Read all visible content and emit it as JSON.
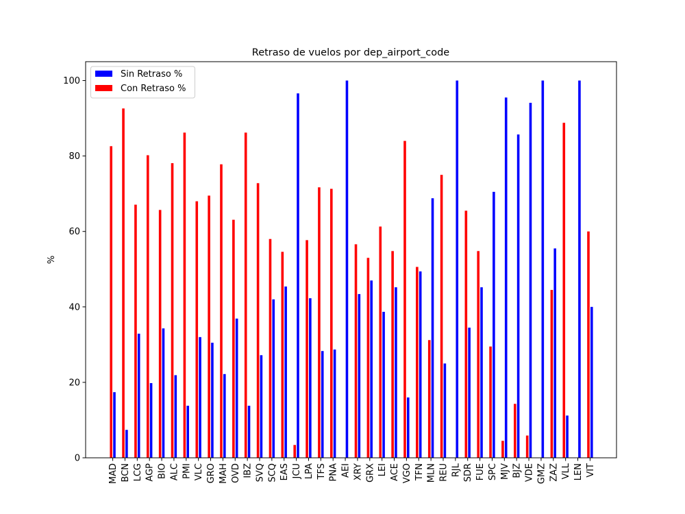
{
  "chart_data": {
    "type": "bar",
    "title": "Retraso de vuelos por dep_airport_code",
    "xlabel": "",
    "ylabel": "%",
    "ylim": [
      0,
      105
    ],
    "yticks": [
      0,
      20,
      40,
      60,
      80,
      100
    ],
    "grid": false,
    "legend_position": "top-left",
    "categories": [
      "MAD",
      "BCN",
      "LCG",
      "AGP",
      "BIO",
      "ALC",
      "PMI",
      "VLC",
      "GRO",
      "MAH",
      "OVD",
      "IBZ",
      "SVQ",
      "SCQ",
      "EAS",
      "JCU",
      "LPA",
      "TFS",
      "PNA",
      "AEI",
      "XRY",
      "GRX",
      "LEI",
      "ACE",
      "VGO",
      "TFN",
      "MLN",
      "REU",
      "RJL",
      "SDR",
      "FUE",
      "SPC",
      "MJV",
      "BJZ",
      "VDE",
      "GMZ",
      "ZAZ",
      "VLL",
      "LEN",
      "VIT"
    ],
    "series": [
      {
        "name": "Sin Retraso %",
        "color": "#0000ff",
        "values": [
          17.4,
          7.4,
          32.9,
          19.8,
          34.3,
          21.9,
          13.8,
          32.0,
          30.5,
          22.2,
          36.9,
          13.8,
          27.2,
          42.0,
          45.4,
          96.6,
          42.3,
          28.3,
          28.7,
          100,
          43.4,
          47.0,
          38.7,
          45.2,
          16.0,
          49.4,
          68.8,
          25.0,
          100,
          34.5,
          45.2,
          70.5,
          95.5,
          85.7,
          94.1,
          100,
          55.5,
          11.2,
          100,
          40.0
        ]
      },
      {
        "name": "Con Retraso %",
        "color": "#ff0000",
        "values": [
          82.6,
          92.6,
          67.1,
          80.2,
          65.7,
          78.1,
          86.2,
          68.0,
          69.5,
          77.8,
          63.1,
          86.2,
          72.8,
          58.0,
          54.6,
          3.4,
          57.7,
          71.7,
          71.3,
          0,
          56.6,
          53.0,
          61.3,
          54.8,
          84.0,
          50.6,
          31.2,
          75.0,
          0,
          65.5,
          54.8,
          29.5,
          4.5,
          14.3,
          5.9,
          0,
          44.5,
          88.8,
          0,
          60.0
        ]
      }
    ]
  }
}
